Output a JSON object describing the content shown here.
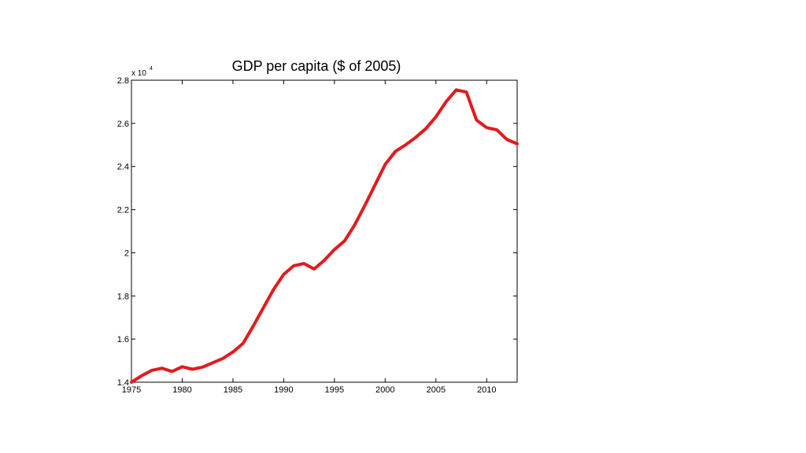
{
  "chart_data": {
    "type": "line",
    "title": "GDP per capita ($ of 2005)",
    "xlabel": "",
    "ylabel": "",
    "y_multiplier": {
      "base": "x 10",
      "exponent": "4"
    },
    "xlim": [
      1975,
      2013
    ],
    "ylim": [
      1.4,
      2.8
    ],
    "xticks": [
      1975,
      1980,
      1985,
      1990,
      1995,
      2000,
      2005,
      2010
    ],
    "xtick_labels": [
      "1975",
      "1980",
      "1985",
      "1990",
      "1995",
      "2000",
      "2005",
      "2010"
    ],
    "yticks": [
      1.4,
      1.6,
      1.8,
      2.0,
      2.2,
      2.4,
      2.6,
      2.8
    ],
    "ytick_labels": [
      "1.4",
      "1.6",
      "1.8",
      "2",
      "2.2",
      "2.4",
      "2.6",
      "2.8"
    ],
    "grid": false,
    "line_color": "#e41a1c",
    "series": [
      {
        "x": [
          1975,
          1976,
          1977,
          1978,
          1979,
          1980,
          1981,
          1982,
          1983,
          1984,
          1985,
          1986,
          1987,
          1988,
          1989,
          1990,
          1991,
          1992,
          1993,
          1994,
          1995,
          1996,
          1997,
          1998,
          1999,
          2000,
          2001,
          2002,
          2003,
          2004,
          2005,
          2006,
          2007,
          2008,
          2009,
          2010,
          2011,
          2012,
          2013
        ],
        "values": [
          1.4,
          1.43,
          1.455,
          1.465,
          1.45,
          1.472,
          1.46,
          1.47,
          1.49,
          1.51,
          1.54,
          1.58,
          1.66,
          1.745,
          1.83,
          1.9,
          1.94,
          1.95,
          1.925,
          1.965,
          2.015,
          2.055,
          2.13,
          2.22,
          2.315,
          2.41,
          2.47,
          2.5,
          2.535,
          2.575,
          2.63,
          2.7,
          2.755,
          2.745,
          2.615,
          2.58,
          2.57,
          2.525,
          2.505
        ]
      }
    ]
  }
}
